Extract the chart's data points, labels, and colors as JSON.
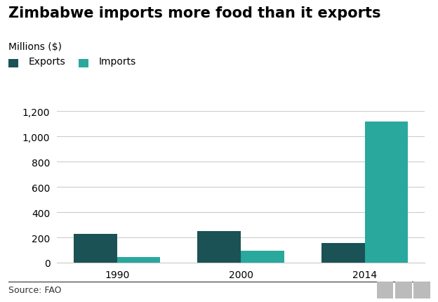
{
  "title": "Zimbabwe imports more food than it exports",
  "ylabel": "Millions ($)",
  "source": "Source: FAO",
  "years": [
    "1990",
    "2000",
    "2014"
  ],
  "exports": [
    230,
    248,
    155
  ],
  "imports": [
    45,
    95,
    1120
  ],
  "export_color": "#1a5255",
  "import_color": "#29a89e",
  "ylim": [
    0,
    1200
  ],
  "yticks": [
    0,
    200,
    400,
    600,
    800,
    1000,
    1200
  ],
  "ytick_labels": [
    "0",
    "200",
    "400",
    "600",
    "800",
    "1,000",
    "1,200"
  ],
  "bar_width": 0.35,
  "background_color": "#ffffff",
  "grid_color": "#cccccc",
  "legend_exports": "Exports",
  "legend_imports": "Imports",
  "title_fontsize": 15,
  "ylabel_fontsize": 10,
  "tick_fontsize": 10,
  "legend_fontsize": 10,
  "source_fontsize": 9
}
